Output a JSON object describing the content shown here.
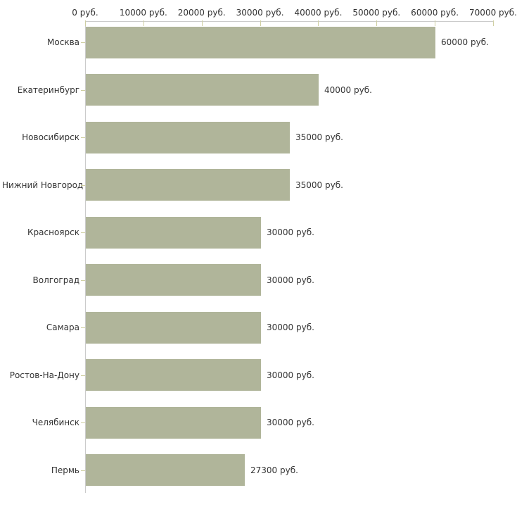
{
  "chart_data": {
    "type": "bar",
    "orientation": "horizontal",
    "title": "",
    "xlabel": "",
    "ylabel": "",
    "unit": "руб.",
    "categories": [
      "Москва",
      "Екатеринбург",
      "Новосибирск",
      "Нижний Новгород",
      "Красноярск",
      "Волгоград",
      "Самара",
      "Ростов-На-Дону",
      "Челябинск",
      "Пермь"
    ],
    "values": [
      60000,
      40000,
      35000,
      35000,
      30000,
      30000,
      30000,
      30000,
      30000,
      27300
    ],
    "value_labels": [
      "60000 руб.",
      "40000 руб.",
      "35000 руб.",
      "35000 руб.",
      "30000 руб.",
      "30000 руб.",
      "30000 руб.",
      "30000 руб.",
      "30000 руб.",
      "27300 руб."
    ],
    "xlim": [
      0,
      70000
    ],
    "x_ticks": [
      0,
      10000,
      20000,
      30000,
      40000,
      50000,
      60000,
      70000
    ],
    "x_tick_labels": [
      "0 руб.",
      "10000 руб.",
      "20000 руб.",
      "30000 руб.",
      "40000 руб.",
      "50000 руб.",
      "60000 руб.",
      "70000 руб."
    ],
    "legend": null,
    "grid": false,
    "colors": {
      "bar": "#b0b59a",
      "axis_line": "#cbcbcb",
      "tick_mark": "#cfcfa2",
      "text": "#333333",
      "background": "#ffffff"
    }
  }
}
